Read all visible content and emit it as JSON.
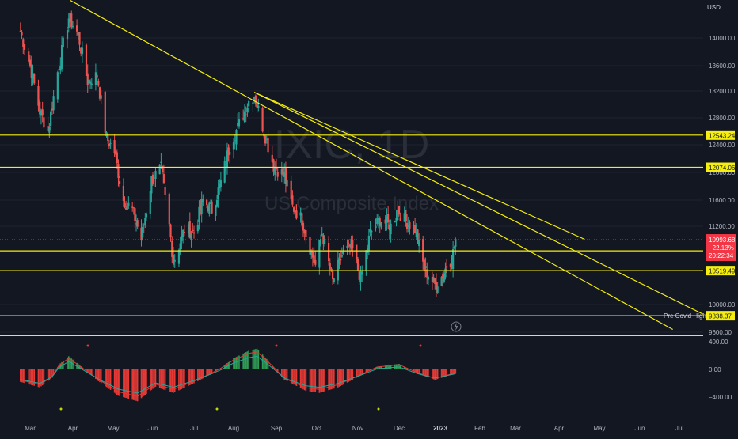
{
  "watermark": {
    "symbol": "IXIC, 1D",
    "name": "US Composite Index"
  },
  "currency": "USD",
  "colors": {
    "background": "#131722",
    "grid": "#1f2330",
    "up": "#26a69a",
    "down": "#ef5350",
    "macd_up": "#2e9e55",
    "macd_down": "#e53935",
    "line_signal": "#2962ff",
    "line_macd": "#ef5350",
    "hline": "#f5ee0e",
    "price_tag": "#f23645"
  },
  "chart_data": [
    {
      "type": "candlestick",
      "ylabel": "USD",
      "ylim": [
        9600,
        14600
      ],
      "yticks": [
        "14000.00",
        "13600.00",
        "13200.00",
        "12800.00",
        "12400.00",
        "12000.00",
        "11600.00",
        "11200.00",
        "10000.00",
        "9600.00"
      ],
      "xticks": [
        "Mar",
        "Apr",
        "May",
        "Jun",
        "Jul",
        "Aug",
        "Sep",
        "Oct",
        "Nov",
        "Dec",
        "2023",
        "Feb",
        "Mar",
        "Apr",
        "May",
        "Jun",
        "Jul"
      ],
      "x_range": [
        "2022-02-22",
        "2023-07-31"
      ],
      "series_close": [
        [
          "2022-02-22",
          14100
        ],
        [
          "2022-03-01",
          13600
        ],
        [
          "2022-03-08",
          12900
        ],
        [
          "2022-03-14",
          12600
        ],
        [
          "2022-03-21",
          13500
        ],
        [
          "2022-03-29",
          14300
        ],
        [
          "2022-04-05",
          14050
        ],
        [
          "2022-04-12",
          13350
        ],
        [
          "2022-04-19",
          13450
        ],
        [
          "2022-04-26",
          12500
        ],
        [
          "2022-05-02",
          12300
        ],
        [
          "2022-05-09",
          11600
        ],
        [
          "2022-05-16",
          11450
        ],
        [
          "2022-05-23",
          11000
        ],
        [
          "2022-05-31",
          11900
        ],
        [
          "2022-06-07",
          12050
        ],
        [
          "2022-06-13",
          11200
        ],
        [
          "2022-06-16",
          10650
        ],
        [
          "2022-06-24",
          11150
        ],
        [
          "2022-07-01",
          11100
        ],
        [
          "2022-07-08",
          11600
        ],
        [
          "2022-07-15",
          11450
        ],
        [
          "2022-07-22",
          11850
        ],
        [
          "2022-07-29",
          12400
        ],
        [
          "2022-08-05",
          12700
        ],
        [
          "2022-08-12",
          13050
        ],
        [
          "2022-08-16",
          13150
        ],
        [
          "2022-08-23",
          12600
        ],
        [
          "2022-08-30",
          12100
        ],
        [
          "2022-09-07",
          11950
        ],
        [
          "2022-09-13",
          11500
        ],
        [
          "2022-09-20",
          11300
        ],
        [
          "2022-09-27",
          10800
        ],
        [
          "2022-09-30",
          10600
        ],
        [
          "2022-10-05",
          11100
        ],
        [
          "2022-10-13",
          10350
        ],
        [
          "2022-10-20",
          10750
        ],
        [
          "2022-10-27",
          10900
        ],
        [
          "2022-11-03",
          10400
        ],
        [
          "2022-11-10",
          11100
        ],
        [
          "2022-11-17",
          11300
        ],
        [
          "2022-11-25",
          11200
        ],
        [
          "2022-11-30",
          11450
        ],
        [
          "2022-12-05",
          11300
        ],
        [
          "2022-12-13",
          11150
        ],
        [
          "2022-12-20",
          10550
        ],
        [
          "2022-12-28",
          10300
        ],
        [
          "2023-01-03",
          10450
        ],
        [
          "2023-01-06",
          10600
        ],
        [
          "2023-01-10",
          10700
        ],
        [
          "2023-01-13",
          10990
        ]
      ],
      "price_labels": [
        {
          "text": "12543.24",
          "value": 12543.24
        },
        {
          "text": "12074.06",
          "value": 12074.06
        },
        {
          "text": "10822.57",
          "value": 10822.57
        },
        {
          "text": "10519.49",
          "value": 10519.49
        },
        {
          "text": "9838.37",
          "value": 9838.37
        }
      ],
      "current_price": {
        "value": 10993.68,
        "text": "10993.68",
        "change": "−22.13%",
        "line3": "20:22:34"
      },
      "annotation": "Pre Covid Highs",
      "lines": [
        "horizontal support/resistance levels",
        "two descending trendlines"
      ]
    },
    {
      "type": "bar",
      "name": "MACD",
      "ylim": [
        -560,
        470
      ],
      "yticks": [
        "400.00",
        "0.00",
        "−400.00"
      ],
      "histogram": [
        [
          "2022-02-22",
          -180
        ],
        [
          "2022-03-08",
          -260
        ],
        [
          "2022-03-17",
          -120
        ],
        [
          "2022-03-22",
          70
        ],
        [
          "2022-03-29",
          190
        ],
        [
          "2022-04-06",
          60
        ],
        [
          "2022-04-20",
          -170
        ],
        [
          "2022-05-05",
          -380
        ],
        [
          "2022-05-20",
          -460
        ],
        [
          "2022-06-03",
          -250
        ],
        [
          "2022-06-16",
          -340
        ],
        [
          "2022-07-01",
          -200
        ],
        [
          "2022-07-15",
          -60
        ],
        [
          "2022-07-22",
          20
        ],
        [
          "2022-08-01",
          160
        ],
        [
          "2022-08-12",
          270
        ],
        [
          "2022-08-18",
          300
        ],
        [
          "2022-08-26",
          130
        ],
        [
          "2022-09-07",
          -150
        ],
        [
          "2022-09-23",
          -310
        ],
        [
          "2022-10-03",
          -340
        ],
        [
          "2022-10-17",
          -260
        ],
        [
          "2022-11-01",
          -110
        ],
        [
          "2022-11-15",
          40
        ],
        [
          "2022-12-01",
          80
        ],
        [
          "2022-12-15",
          -60
        ],
        [
          "2022-12-28",
          -150
        ],
        [
          "2023-01-13",
          -60
        ]
      ]
    }
  ]
}
